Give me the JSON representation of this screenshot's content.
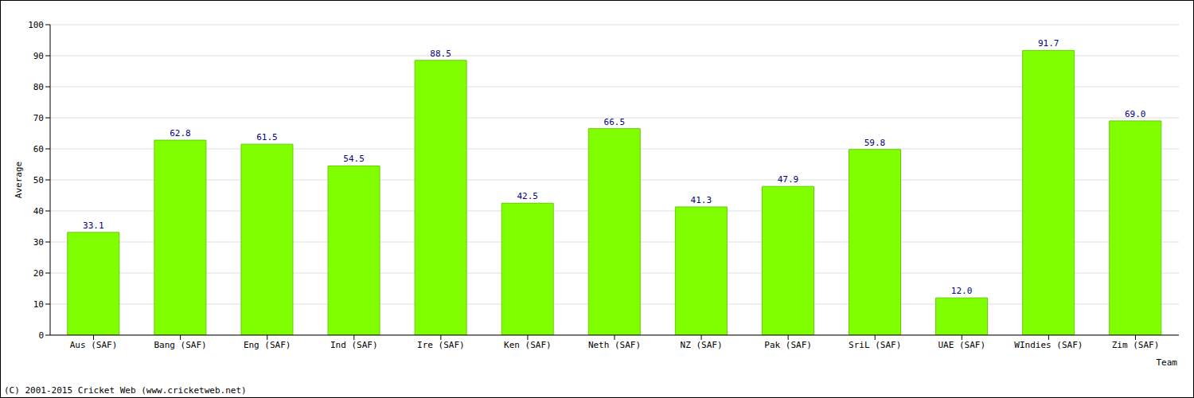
{
  "chart_data": {
    "type": "bar",
    "x_label": "Team",
    "y_label": "Average",
    "annotations": [
      "(C) 2001-2015 Cricket Web (www.cricketweb.net)"
    ],
    "categories": [
      "Aus (SAF)",
      "Bang (SAF)",
      "Eng (SAF)",
      "Ind (SAF)",
      "Ire (SAF)",
      "Ken (SAF)",
      "Neth (SAF)",
      "NZ (SAF)",
      "Pak (SAF)",
      "SriL (SAF)",
      "UAE (SAF)",
      "WIndies (SAF)",
      "Zim (SAF)"
    ],
    "values": [
      33.1,
      62.8,
      61.5,
      54.5,
      88.5,
      42.5,
      66.5,
      41.3,
      47.9,
      59.8,
      12.0,
      91.7,
      69.0
    ],
    "value_labels": [
      "33.1",
      "62.8",
      "61.5",
      "54.5",
      "88.5",
      "42.5",
      "66.5",
      "41.3",
      "47.9",
      "59.8",
      "12.0",
      "91.7",
      "69.0"
    ],
    "color": "#80ff00",
    "ylim": [
      0,
      100
    ],
    "yticks": [
      0,
      10,
      20,
      30,
      40,
      50,
      60,
      70,
      80,
      90,
      100
    ],
    "grid": true,
    "data_labels": true
  }
}
